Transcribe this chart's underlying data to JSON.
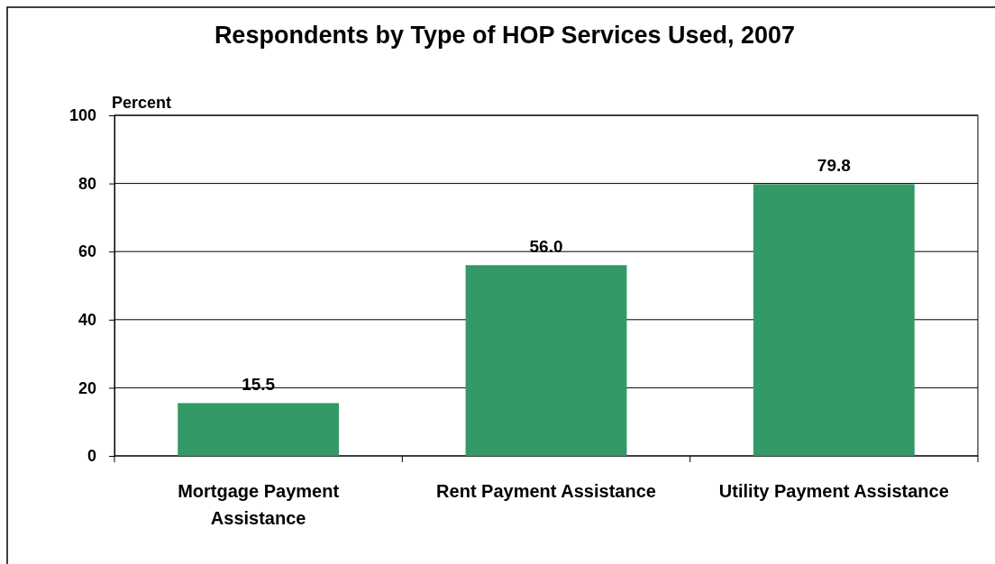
{
  "chart_data": {
    "type": "bar",
    "title": "Respondents by Type of HOP Services Used, 2007",
    "ylabel": "Percent",
    "categories": [
      "Mortgage Payment Assistance",
      "Rent Payment Assistance",
      "Utility Payment Assistance"
    ],
    "values": [
      15.5,
      56.0,
      79.8
    ],
    "color": "#339966",
    "value_labels": [
      "15.5",
      "56.0",
      "79.8"
    ],
    "ylim": [
      0,
      100
    ],
    "yticks": [
      0,
      20,
      40,
      60,
      80,
      100
    ],
    "grid": "y"
  }
}
